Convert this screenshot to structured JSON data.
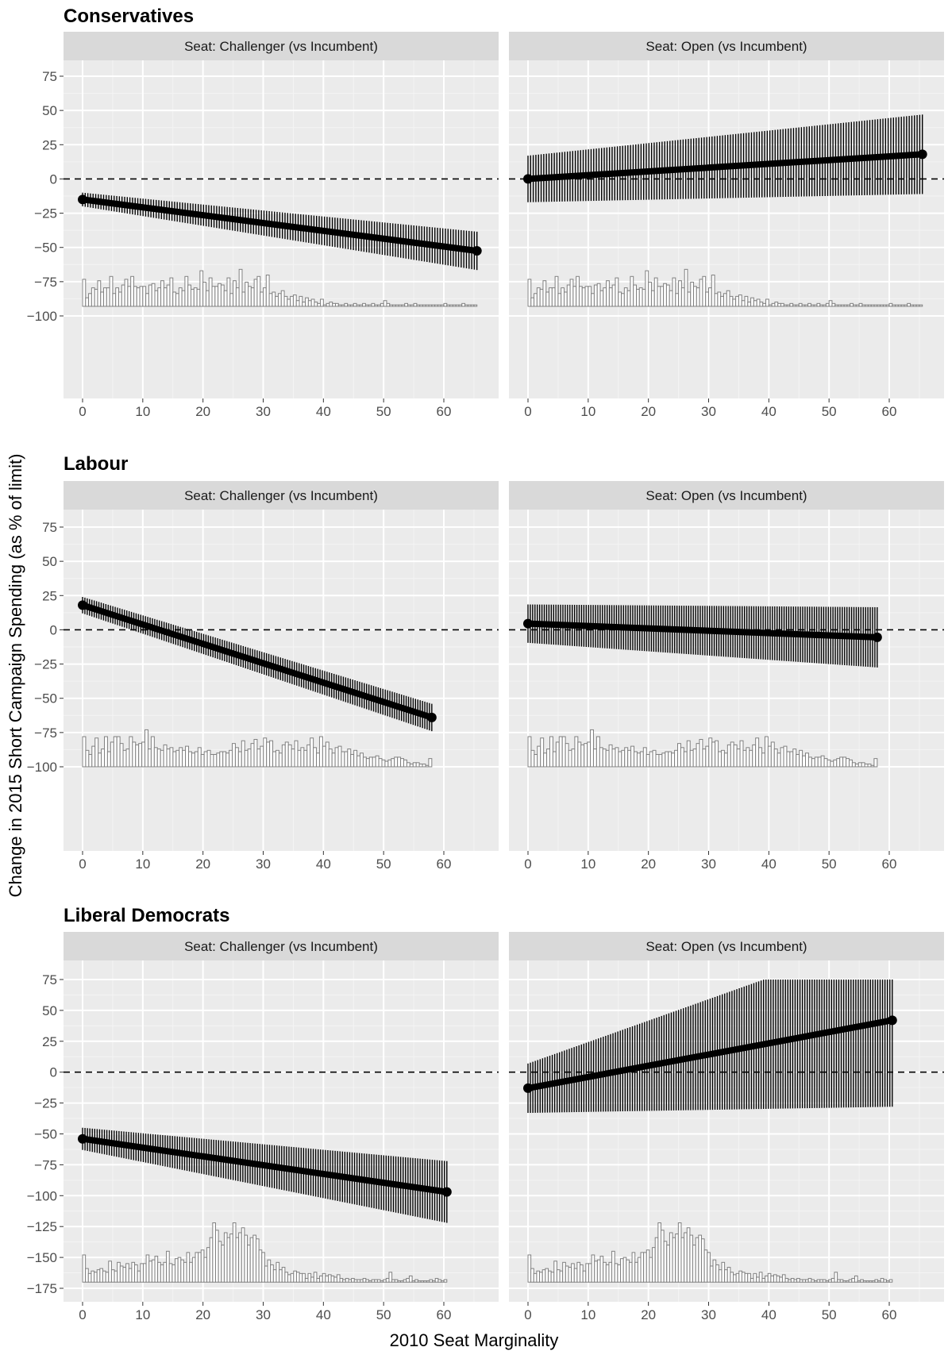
{
  "y_axis_title": "Change in 2015 Short Campaign Spending (as % of limit)",
  "x_axis_title": "2010 Seat Marginality",
  "chart_data": [
    {
      "type": "line",
      "title": "Conservatives",
      "xlabel": "2010 Seat Marginality",
      "ylabel": "Change in 2015 Short Campaign Spending (as % of limit)",
      "xlim": [
        0,
        65
      ],
      "ylim": [
        -100,
        75
      ],
      "x_ticks": [
        0,
        10,
        20,
        30,
        40,
        50,
        60
      ],
      "y_ticks": [
        75,
        50,
        25,
        0,
        -25,
        -50,
        -75,
        -100
      ],
      "grid": true,
      "reference_line_y": 0,
      "panels": [
        {
          "label": "Seat: Challenger (vs Incumbent)",
          "x_range": [
            0,
            65.5
          ],
          "estimate": {
            "start": -15,
            "end": -52.5
          },
          "ci_halfwidth": {
            "start": 5,
            "end": 14
          },
          "histogram": {
            "baseline": -93,
            "max_height": 27,
            "values": [
              19,
              6,
              9,
              13,
              12,
              18,
              10,
              13,
              13,
              21,
              9,
              13,
              10,
              15,
              19,
              14,
              21,
              14,
              13,
              14,
              14,
              9,
              15,
              16,
              11,
              13,
              18,
              13,
              15,
              20,
              10,
              9,
              13,
              11,
              21,
              15,
              12,
              13,
              12,
              25,
              17,
              11,
              20,
              14,
              14,
              16,
              15,
              11,
              20,
              9,
              18,
              13,
              26,
              10,
              17,
              14,
              13,
              19,
              21,
              10,
              13,
              22,
              9,
              10,
              7,
              9,
              11,
              7,
              5,
              7,
              8,
              4,
              7,
              3,
              6,
              4,
              5,
              3,
              2,
              5,
              1,
              2,
              3,
              2,
              2,
              1,
              1,
              2,
              1,
              1,
              2,
              1,
              1,
              2,
              1,
              1,
              2,
              1,
              1,
              2,
              4,
              2,
              1,
              1,
              1,
              1,
              1,
              2,
              1,
              1,
              2,
              1,
              1,
              1,
              1,
              1,
              1,
              1,
              1,
              1,
              2,
              1,
              1,
              1,
              1,
              1,
              2,
              1,
              1,
              1,
              1
            ]
          }
        },
        {
          "label": "Seat: Open (vs Incumbent)",
          "x_range": [
            0,
            65.5
          ],
          "estimate": {
            "start": 0,
            "end": 18
          },
          "ci_halfwidth": {
            "start": 17,
            "end": 29
          },
          "histogram": {
            "baseline": -93,
            "max_height": 27,
            "values": [
              19,
              6,
              9,
              13,
              12,
              18,
              10,
              13,
              13,
              21,
              9,
              13,
              10,
              15,
              19,
              14,
              21,
              14,
              13,
              14,
              14,
              9,
              15,
              16,
              11,
              13,
              18,
              13,
              15,
              20,
              10,
              9,
              13,
              11,
              21,
              15,
              12,
              13,
              12,
              25,
              17,
              11,
              20,
              14,
              14,
              16,
              15,
              11,
              20,
              9,
              18,
              13,
              26,
              10,
              17,
              14,
              13,
              19,
              21,
              10,
              13,
              22,
              9,
              10,
              7,
              9,
              11,
              7,
              5,
              7,
              8,
              4,
              7,
              3,
              6,
              4,
              5,
              3,
              2,
              5,
              1,
              2,
              3,
              2,
              2,
              1,
              1,
              2,
              1,
              1,
              2,
              1,
              1,
              2,
              1,
              1,
              2,
              1,
              1,
              2,
              4,
              2,
              1,
              1,
              1,
              1,
              1,
              2,
              1,
              1,
              2,
              1,
              1,
              1,
              1,
              1,
              1,
              1,
              1,
              1,
              2,
              1,
              1,
              1,
              1,
              1,
              2,
              1,
              1,
              1,
              1
            ]
          }
        }
      ]
    },
    {
      "type": "line",
      "title": "Labour",
      "xlabel": "2010 Seat Marginality",
      "ylabel": "Change in 2015 Short Campaign Spending (as % of limit)",
      "xlim": [
        0,
        65
      ],
      "ylim": [
        -100,
        75
      ],
      "x_ticks": [
        0,
        10,
        20,
        30,
        40,
        50,
        60
      ],
      "y_ticks": [
        75,
        50,
        25,
        0,
        -25,
        -50,
        -75,
        -100
      ],
      "grid": true,
      "reference_line_y": 0,
      "panels": [
        {
          "label": "Seat: Challenger (vs Incumbent)",
          "x_range": [
            0,
            58
          ],
          "estimate": {
            "start": 18,
            "end": -64
          },
          "ci_halfwidth": {
            "start": 6,
            "end": 10
          },
          "histogram": {
            "baseline": -100,
            "max_height": 27,
            "values": [
              22,
              12,
              9,
              15,
              21,
              10,
              13,
              22,
              11,
              18,
              22,
              22,
              17,
              12,
              13,
              22,
              18,
              16,
              17,
              18,
              27,
              13,
              22,
              14,
              13,
              12,
              16,
              13,
              14,
              11,
              12,
              14,
              12,
              15,
              11,
              10,
              11,
              14,
              9,
              11,
              12,
              9,
              9,
              10,
              11,
              11,
              10,
              12,
              17,
              14,
              11,
              19,
              12,
              13,
              17,
              20,
              13,
              15,
              21,
              18,
              19,
              11,
              12,
              10,
              16,
              18,
              16,
              13,
              19,
              12,
              14,
              12,
              16,
              21,
              14,
              10,
              22,
              15,
              18,
              13,
              10,
              14,
              15,
              11,
              11,
              13,
              9,
              12,
              8,
              10,
              7,
              6,
              7,
              7,
              8,
              6,
              5,
              4,
              5,
              6,
              7,
              7,
              6,
              5,
              3,
              2,
              3,
              3,
              2,
              2,
              1,
              6
            ]
          }
        },
        {
          "label": "Seat: Open (vs Incumbent)",
          "x_range": [
            0,
            58
          ],
          "estimate": {
            "start": 4.5,
            "end": -5.5
          },
          "ci_halfwidth": {
            "start": 14,
            "end": 22
          },
          "histogram": {
            "baseline": -100,
            "max_height": 27,
            "values": [
              22,
              12,
              9,
              15,
              21,
              10,
              13,
              22,
              11,
              18,
              22,
              22,
              17,
              12,
              13,
              22,
              18,
              16,
              17,
              18,
              27,
              13,
              22,
              14,
              13,
              12,
              16,
              13,
              14,
              11,
              12,
              14,
              12,
              15,
              11,
              10,
              11,
              14,
              9,
              11,
              12,
              9,
              9,
              10,
              11,
              11,
              10,
              12,
              17,
              14,
              11,
              19,
              12,
              13,
              17,
              20,
              13,
              15,
              21,
              18,
              19,
              11,
              12,
              10,
              16,
              18,
              16,
              13,
              19,
              12,
              14,
              12,
              16,
              21,
              14,
              10,
              22,
              15,
              18,
              13,
              10,
              14,
              15,
              11,
              11,
              13,
              9,
              12,
              8,
              10,
              7,
              6,
              7,
              7,
              8,
              6,
              5,
              4,
              5,
              6,
              7,
              7,
              6,
              5,
              3,
              2,
              3,
              3,
              2,
              2,
              1,
              6
            ]
          }
        }
      ]
    },
    {
      "type": "line",
      "title": "Liberal Democrats",
      "xlabel": "2010 Seat Marginality",
      "ylabel": "Change in 2015 Short Campaign Spending (as % of limit)",
      "xlim": [
        0,
        65
      ],
      "ylim": [
        -175,
        75
      ],
      "x_ticks": [
        0,
        10,
        20,
        30,
        40,
        50,
        60
      ],
      "y_ticks": [
        75,
        50,
        25,
        0,
        -25,
        -50,
        -75,
        -100,
        -125,
        -150,
        -175
      ],
      "grid": true,
      "reference_line_y": 0,
      "panels": [
        {
          "label": "Seat: Challenger (vs Incumbent)",
          "x_range": [
            0,
            60.5
          ],
          "estimate": {
            "start": -54,
            "end": -97
          },
          "ci_halfwidth": {
            "start": 9,
            "end": 25
          },
          "histogram": {
            "baseline": -170,
            "max_height": 48,
            "values": [
              22,
              11,
              7,
              9,
              8,
              10,
              11,
              9,
              8,
              17,
              10,
              9,
              16,
              13,
              12,
              15,
              11,
              16,
              14,
              9,
              15,
              15,
              22,
              17,
              18,
              21,
              16,
              14,
              16,
              25,
              15,
              14,
              19,
              20,
              18,
              16,
              24,
              16,
              20,
              24,
              24,
              26,
              20,
              28,
              36,
              48,
              42,
              33,
              30,
              40,
              36,
              39,
              48,
              36,
              40,
              44,
              38,
              30,
              36,
              38,
              35,
              26,
              24,
              13,
              18,
              14,
              10,
              16,
              10,
              12,
              8,
              6,
              7,
              9,
              8,
              7,
              7,
              3,
              7,
              4,
              8,
              3,
              5,
              7,
              5,
              6,
              5,
              4,
              6,
              3,
              2,
              3,
              2,
              3,
              2,
              2,
              2,
              3,
              2,
              1,
              2,
              2,
              2,
              1,
              2,
              3,
              8,
              2,
              2,
              1,
              1,
              2,
              3,
              5,
              1,
              2,
              1,
              1,
              1,
              1,
              2,
              1,
              3,
              2,
              1,
              2
            ]
          }
        },
        {
          "label": "Seat: Open (vs Incumbent)",
          "x_range": [
            0,
            60.5
          ],
          "estimate": {
            "start": -13,
            "end": 42
          },
          "ci_halfwidth": {
            "start": 20,
            "end": 70
          },
          "ci_clip_top": 75,
          "histogram": {
            "baseline": -170,
            "max_height": 48,
            "values": [
              22,
              11,
              7,
              9,
              8,
              10,
              11,
              9,
              8,
              17,
              10,
              9,
              16,
              13,
              12,
              15,
              11,
              16,
              14,
              9,
              15,
              15,
              22,
              17,
              18,
              21,
              16,
              14,
              16,
              25,
              15,
              14,
              19,
              20,
              18,
              16,
              24,
              16,
              20,
              24,
              24,
              26,
              20,
              28,
              36,
              48,
              42,
              33,
              30,
              40,
              36,
              39,
              48,
              36,
              40,
              44,
              38,
              30,
              36,
              38,
              35,
              26,
              24,
              13,
              18,
              14,
              10,
              16,
              10,
              12,
              8,
              6,
              7,
              9,
              8,
              7,
              7,
              3,
              7,
              4,
              8,
              3,
              5,
              7,
              5,
              6,
              5,
              4,
              6,
              3,
              2,
              3,
              2,
              3,
              2,
              2,
              2,
              3,
              2,
              1,
              2,
              2,
              2,
              1,
              2,
              3,
              8,
              2,
              2,
              1,
              1,
              2,
              3,
              5,
              1,
              2,
              1,
              1,
              1,
              1,
              2,
              1,
              3,
              2,
              1,
              2
            ]
          }
        }
      ]
    }
  ]
}
